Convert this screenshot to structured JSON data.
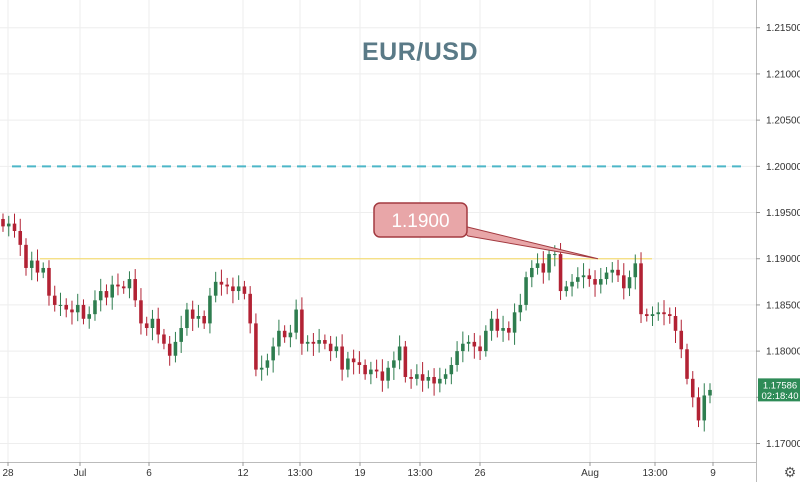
{
  "chart_data": {
    "type": "candlestick",
    "title": "EUR/USD",
    "ylim": [
      1.168,
      1.218
    ],
    "y_ticks": [
      "1.21500",
      "1.21000",
      "1.20500",
      "1.20000",
      "1.19500",
      "1.19000",
      "1.18500",
      "1.18000",
      "1.17500",
      "1.17000"
    ],
    "x_ticks": [
      "28",
      "Jul",
      "6",
      "12",
      "13:00",
      "19",
      "13:00",
      "26",
      "Aug",
      "13:00",
      "9"
    ],
    "grid": true,
    "up_color": "#26a69a",
    "down_color": "#ef5350",
    "candle_up_color": "#2e7d4f",
    "candle_down_color": "#b22234",
    "reference_lines": [
      {
        "value": 1.2,
        "style": "dashed",
        "color": "#4db6c8"
      },
      {
        "value": 1.19,
        "style": "solid",
        "color": "#f5dc78"
      }
    ],
    "annotation": {
      "text": "1.1900",
      "value": 1.19
    },
    "current_price": {
      "value": 1.17586,
      "label": "1.17586",
      "countdown": "02:18:40",
      "color": "#2e8b57"
    },
    "closes": [
      1.1935,
      1.1938,
      1.193,
      1.1915,
      1.189,
      1.1898,
      1.1885,
      1.189,
      1.186,
      1.185,
      1.185,
      1.1845,
      1.1842,
      1.185,
      1.1835,
      1.184,
      1.1855,
      1.1865,
      1.1858,
      1.1872,
      1.187,
      1.1868,
      1.1878,
      1.1855,
      1.183,
      1.1825,
      1.1835,
      1.1818,
      1.1808,
      1.1795,
      1.181,
      1.1825,
      1.1845,
      1.1835,
      1.1838,
      1.183,
      1.186,
      1.1875,
      1.1872,
      1.187,
      1.1865,
      1.187,
      1.1862,
      1.183,
      1.178,
      1.1782,
      1.179,
      1.1805,
      1.1822,
      1.1815,
      1.182,
      1.1845,
      1.1808,
      1.181,
      1.1808,
      1.1812,
      1.1808,
      1.18,
      1.1805,
      1.178,
      1.1792,
      1.1788,
      1.1785,
      1.1775,
      1.178,
      1.1778,
      1.1768,
      1.1782,
      1.179,
      1.1805,
      1.1772,
      1.177,
      1.1775,
      1.1768,
      1.1772,
      1.1765,
      1.177,
      1.1775,
      1.1785,
      1.18,
      1.1808,
      1.181,
      1.1805,
      1.18,
      1.1822,
      1.1835,
      1.1822,
      1.1825,
      1.182,
      1.1842,
      1.185,
      1.188,
      1.189,
      1.1895,
      1.1885,
      1.1905,
      1.1905,
      1.1865,
      1.187,
      1.1875,
      1.188,
      1.1882,
      1.1878,
      1.1872,
      1.1878,
      1.1885,
      1.1888,
      1.1882,
      1.1868,
      1.188,
      1.1895,
      1.184,
      1.1838,
      1.184,
      1.1842,
      1.184,
      1.1838,
      1.1822,
      1.1802,
      1.177,
      1.175,
      1.1725,
      1.1752,
      1.1758
    ]
  },
  "labels": {
    "title": "EUR/USD",
    "annotation": "1.1900",
    "price_tag": "1.17586",
    "countdown": "02:18:40"
  }
}
